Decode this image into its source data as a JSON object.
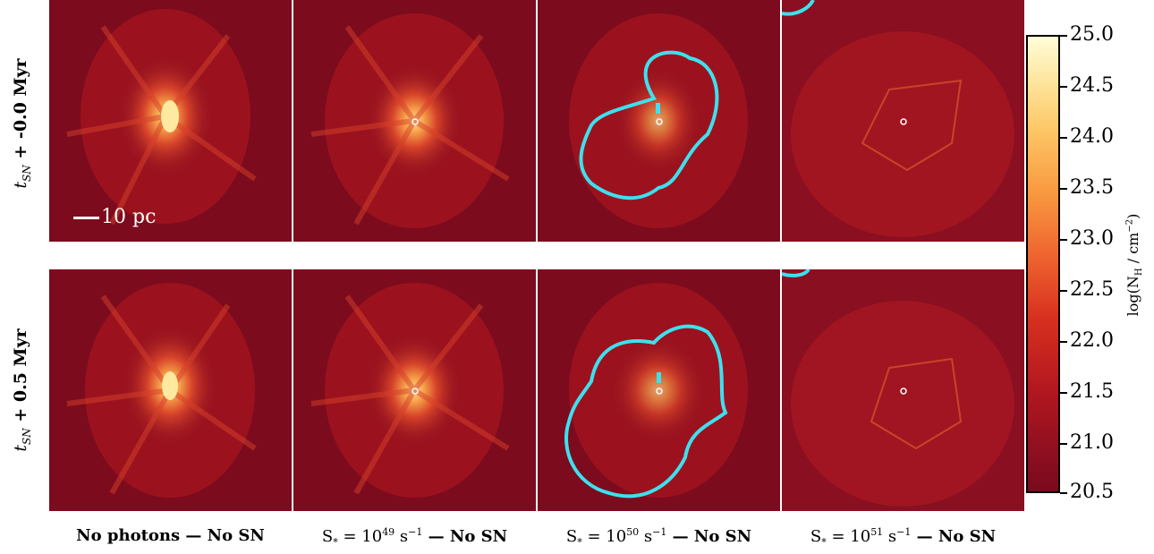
{
  "rows": [
    {
      "label_t": "t",
      "label_sub": "SN",
      "label_rest": " + -0.0 Myr"
    },
    {
      "label_t": "t",
      "label_sub": "SN",
      "label_rest": " + 0.5 Myr"
    }
  ],
  "columns": [
    {
      "pre": "No photons — No SN",
      "sup": "",
      "post": ""
    },
    {
      "pre": "S",
      "sub": "*",
      "mid": " = 10",
      "sup": "49",
      "post": " s",
      "sup2": "−1",
      "tail": " — No SN"
    },
    {
      "pre": "S",
      "sub": "*",
      "mid": " = 10",
      "sup": "50",
      "post": " s",
      "sup2": "−1",
      "tail": " — No SN"
    },
    {
      "pre": "S",
      "sub": "*",
      "mid": " = 10",
      "sup": "51",
      "post": " s",
      "sup2": "−1",
      "tail": " — No SN"
    }
  ],
  "scalebar": {
    "text": "10 pc"
  },
  "colorbar": {
    "title_pre": "log(N",
    "title_sub": "H",
    "title_mid": " / cm",
    "title_sup": "−2",
    "title_post": ")",
    "ticks": [
      "25.0",
      "24.5",
      "24.0",
      "23.5",
      "23.0",
      "22.5",
      "22.0",
      "21.5",
      "21.0",
      "20.5"
    ],
    "colors": {
      "low": "#7a0a1c",
      "high": "#fffdd9"
    }
  },
  "contour_color": "#3ee0ee"
}
